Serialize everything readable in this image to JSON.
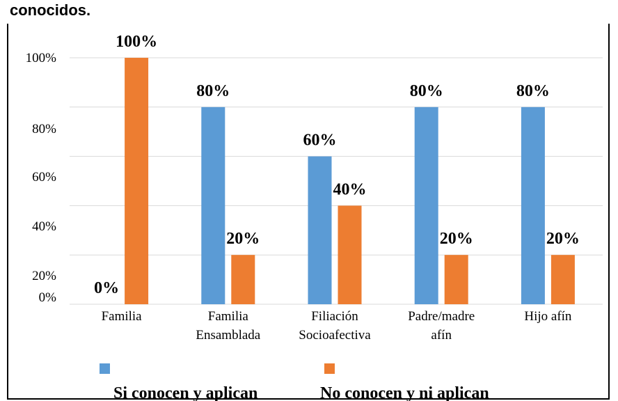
{
  "title": "conocidos.",
  "chart_data": {
    "type": "bar",
    "categories": [
      [
        "Familia"
      ],
      [
        "Familia",
        "Ensamblada"
      ],
      [
        "Filiación",
        "Socioafectiva"
      ],
      [
        "Padre/madre",
        "afín"
      ],
      [
        "Hijo afín"
      ]
    ],
    "series": [
      {
        "name": "Si conocen y aplican",
        "values": [
          0,
          80,
          60,
          80,
          80
        ],
        "color": "#5B9BD5",
        "labels": [
          "0%",
          "80%",
          "60%",
          "80%",
          "80%"
        ]
      },
      {
        "name": "No conocen y ni aplican",
        "values": [
          100,
          20,
          40,
          20,
          20
        ],
        "color": "#ED7D31",
        "labels": [
          "100%",
          "20%",
          "40%",
          "20%",
          "20%"
        ]
      }
    ],
    "ylim": [
      0,
      100
    ],
    "yticks": [
      "100%",
      "80%",
      "60%",
      "40%",
      "20%",
      "0%"
    ],
    "grid": true,
    "legend": "bottom"
  }
}
